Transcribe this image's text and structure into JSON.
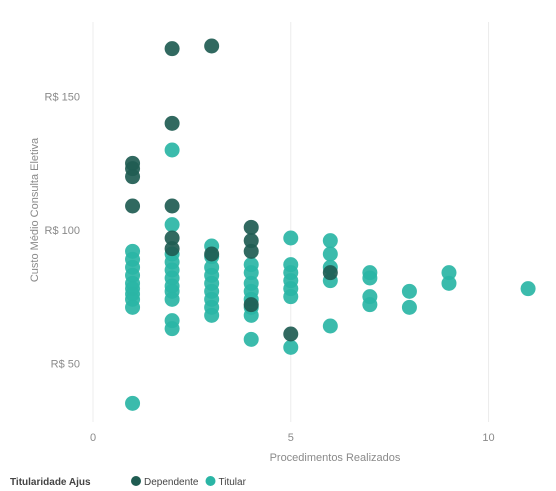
{
  "chart_data": {
    "type": "scatter",
    "title": "",
    "xlabel": "Procedimentos Realizados",
    "ylabel": "Custo Médio Consulta Eletiva",
    "xlim": [
      0,
      11.2
    ],
    "ylim": [
      28,
      178
    ],
    "x_ticks": [
      0,
      5,
      10
    ],
    "y_ticks": [
      {
        "value": 50,
        "label": "R$ 50"
      },
      {
        "value": 100,
        "label": "R$ 100"
      },
      {
        "value": 150,
        "label": "R$ 150"
      }
    ],
    "grid": {
      "vertical": true,
      "horizontal": false
    },
    "legend": {
      "title": "Titularidade Ajus",
      "placement": "bottom-left"
    },
    "series": [
      {
        "name": "Dependente",
        "color": "#1f5c52",
        "points": [
          {
            "x": 1,
            "y": 125
          },
          {
            "x": 1,
            "y": 123
          },
          {
            "x": 1,
            "y": 120
          },
          {
            "x": 1,
            "y": 109
          },
          {
            "x": 2,
            "y": 168
          },
          {
            "x": 2,
            "y": 140
          },
          {
            "x": 2,
            "y": 109
          },
          {
            "x": 2,
            "y": 97
          },
          {
            "x": 2,
            "y": 93
          },
          {
            "x": 3,
            "y": 169
          },
          {
            "x": 3,
            "y": 91
          },
          {
            "x": 4,
            "y": 101
          },
          {
            "x": 4,
            "y": 96
          },
          {
            "x": 4,
            "y": 92
          },
          {
            "x": 4,
            "y": 72
          },
          {
            "x": 5,
            "y": 61
          },
          {
            "x": 6,
            "y": 84
          }
        ]
      },
      {
        "name": "Titular",
        "color": "#2ab5a5",
        "points": [
          {
            "x": 1,
            "y": 92
          },
          {
            "x": 1,
            "y": 89
          },
          {
            "x": 1,
            "y": 86
          },
          {
            "x": 1,
            "y": 83
          },
          {
            "x": 1,
            "y": 80
          },
          {
            "x": 1,
            "y": 78
          },
          {
            "x": 1,
            "y": 76
          },
          {
            "x": 1,
            "y": 74
          },
          {
            "x": 1,
            "y": 71
          },
          {
            "x": 1,
            "y": 35
          },
          {
            "x": 2,
            "y": 130
          },
          {
            "x": 2,
            "y": 102
          },
          {
            "x": 2,
            "y": 91
          },
          {
            "x": 2,
            "y": 88
          },
          {
            "x": 2,
            "y": 85
          },
          {
            "x": 2,
            "y": 82
          },
          {
            "x": 2,
            "y": 79
          },
          {
            "x": 2,
            "y": 77
          },
          {
            "x": 2,
            "y": 74
          },
          {
            "x": 2,
            "y": 66
          },
          {
            "x": 2,
            "y": 63
          },
          {
            "x": 3,
            "y": 94
          },
          {
            "x": 3,
            "y": 90
          },
          {
            "x": 3,
            "y": 86
          },
          {
            "x": 3,
            "y": 83
          },
          {
            "x": 3,
            "y": 80
          },
          {
            "x": 3,
            "y": 77
          },
          {
            "x": 3,
            "y": 74
          },
          {
            "x": 3,
            "y": 71
          },
          {
            "x": 3,
            "y": 68
          },
          {
            "x": 4,
            "y": 87
          },
          {
            "x": 4,
            "y": 84
          },
          {
            "x": 4,
            "y": 80
          },
          {
            "x": 4,
            "y": 77
          },
          {
            "x": 4,
            "y": 74
          },
          {
            "x": 4,
            "y": 71
          },
          {
            "x": 4,
            "y": 68
          },
          {
            "x": 4,
            "y": 59
          },
          {
            "x": 5,
            "y": 97
          },
          {
            "x": 5,
            "y": 87
          },
          {
            "x": 5,
            "y": 84
          },
          {
            "x": 5,
            "y": 81
          },
          {
            "x": 5,
            "y": 78
          },
          {
            "x": 5,
            "y": 75
          },
          {
            "x": 5,
            "y": 56
          },
          {
            "x": 6,
            "y": 96
          },
          {
            "x": 6,
            "y": 91
          },
          {
            "x": 6,
            "y": 86
          },
          {
            "x": 6,
            "y": 81
          },
          {
            "x": 6,
            "y": 64
          },
          {
            "x": 7,
            "y": 84
          },
          {
            "x": 7,
            "y": 82
          },
          {
            "x": 7,
            "y": 75
          },
          {
            "x": 7,
            "y": 72
          },
          {
            "x": 8,
            "y": 77
          },
          {
            "x": 8,
            "y": 71
          },
          {
            "x": 9,
            "y": 84
          },
          {
            "x": 9,
            "y": 80
          },
          {
            "x": 11,
            "y": 78
          }
        ]
      }
    ]
  }
}
